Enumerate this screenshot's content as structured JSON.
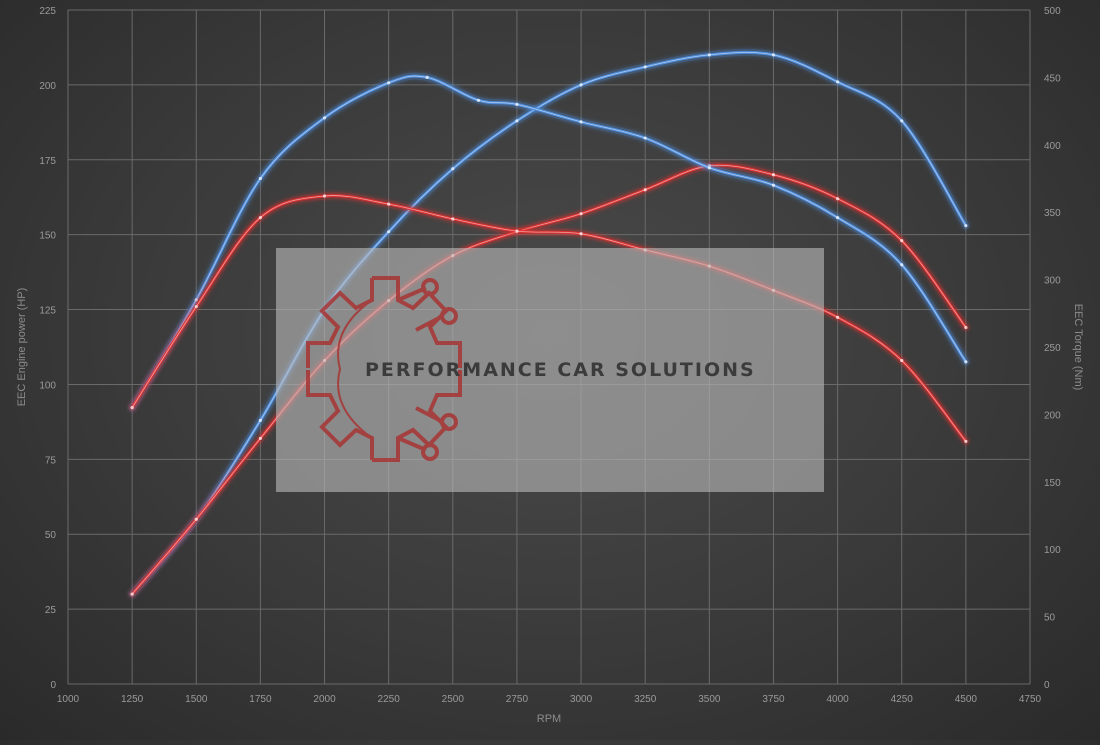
{
  "watermark": {
    "text": "PERFORMANCE CAR SOLUTIONS"
  },
  "chart_data": {
    "type": "line",
    "xlabel": "RPM",
    "ylabel_left": "EEC Engine power (HP)",
    "ylabel_right": "EEC Torque (Nm)",
    "xlim": [
      1000,
      4750
    ],
    "xticks": [
      1000,
      1250,
      1500,
      1750,
      2000,
      2250,
      2500,
      2750,
      3000,
      3250,
      3500,
      3750,
      4000,
      4250,
      4500,
      4750
    ],
    "ylim_left": [
      0,
      225
    ],
    "yticks_left": [
      0,
      25,
      50,
      75,
      100,
      125,
      150,
      175,
      200,
      225
    ],
    "ylim_right": [
      0,
      500
    ],
    "yticks_right": [
      0,
      50,
      100,
      150,
      200,
      250,
      300,
      350,
      400,
      450,
      500
    ],
    "grid": true,
    "colors": {
      "tuned": "#4f8fe0",
      "stock": "#e03030"
    },
    "series": [
      {
        "axis": "left",
        "color": "#4f8fe0",
        "x": [
          1250,
          1500,
          1750,
          2000,
          2250,
          2500,
          2750,
          3000,
          3250,
          3500,
          3750,
          4000,
          4250,
          4500
        ],
        "y": [
          30,
          55,
          88,
          125,
          151,
          172,
          188,
          200,
          206,
          210,
          210,
          201,
          188,
          153
        ]
      },
      {
        "axis": "left",
        "color": "#e03030",
        "x": [
          1250,
          1500,
          1750,
          2000,
          2250,
          2500,
          2750,
          3000,
          3250,
          3500,
          3750,
          4000,
          4250,
          4500
        ],
        "y": [
          30,
          55,
          82,
          108,
          128,
          143,
          151,
          157,
          165,
          173,
          170,
          162,
          148,
          119
        ]
      },
      {
        "axis": "right",
        "color": "#4f8fe0",
        "x": [
          1250,
          1500,
          1750,
          2000,
          2250,
          2400,
          2600,
          2750,
          3000,
          3250,
          3500,
          3750,
          4000,
          4250,
          4500
        ],
        "y": [
          205,
          285,
          375,
          420,
          446,
          450,
          433,
          430,
          417,
          405,
          383,
          370,
          346,
          311,
          239
        ]
      },
      {
        "axis": "right",
        "color": "#e03030",
        "x": [
          1250,
          1500,
          1750,
          2000,
          2250,
          2500,
          2750,
          3000,
          3250,
          3500,
          3750,
          4000,
          4250,
          4500
        ],
        "y": [
          205,
          280,
          346,
          362,
          356,
          345,
          336,
          334,
          322,
          310,
          292,
          272,
          240,
          180
        ]
      }
    ]
  }
}
